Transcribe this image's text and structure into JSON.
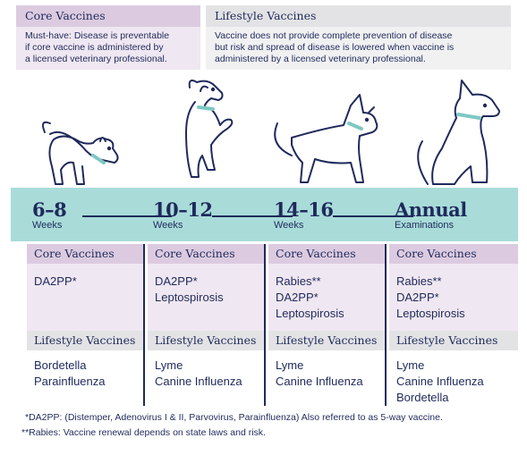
{
  "legend": {
    "core": {
      "title": "Core Vaccines",
      "lines": [
        "Must-have: Disease is preventable",
        "if core vaccine is administered by",
        "a licensed veterinary professional."
      ]
    },
    "lifestyle": {
      "title": "Lifestyle Vaccines",
      "lines": [
        "Vaccine does not provide complete prevention of disease",
        "but risk and spread of disease is lowered when vaccine is",
        "administered by a licensed veterinary professional."
      ]
    }
  },
  "colors": {
    "navy": "#1f2a5c",
    "teal": "#a9dcd9",
    "core_header": "#dccbe0",
    "core_body": "#efe7f1",
    "lifestyle_header": "#e3e3e5"
  },
  "stages": [
    {
      "age": "6–8",
      "unit": "Weeks",
      "core_label": "Core Vaccines",
      "core": [
        "DA2PP*"
      ],
      "lifestyle_label": "Lifestyle Vaccines",
      "lifestyle": [
        "Bordetella",
        "Parainfluenza"
      ]
    },
    {
      "age": "10–12",
      "unit": "Weeks",
      "core_label": "Core Vaccines",
      "core": [
        "DA2PP*",
        "Leptospirosis"
      ],
      "lifestyle_label": "Lifestyle Vaccines",
      "lifestyle": [
        "Lyme",
        "Canine Influenza"
      ]
    },
    {
      "age": "14–16",
      "unit": "Weeks",
      "core_label": "Core Vaccines",
      "core": [
        "Rabies**",
        "DA2PP*",
        "Leptospirosis"
      ],
      "lifestyle_label": "Lifestyle Vaccines",
      "lifestyle": [
        "Lyme",
        "Canine Influenza"
      ]
    },
    {
      "age": "Annual",
      "unit": "Examinations",
      "core_label": "Core Vaccines",
      "core": [
        "Rabies**",
        "DA2PP*",
        "Leptospirosis"
      ],
      "lifestyle_label": "Lifestyle Vaccines",
      "lifestyle": [
        "Lyme",
        "Canine Influenza",
        "Bordetella"
      ]
    }
  ],
  "footnotes": [
    "*DA2PP: (Distemper, Adenovirus I & II, Parvovirus, Parainfluenza) Also referred to as 5-way vaccine.",
    "**Rabies: Vaccine renewal depends on state laws and risk."
  ],
  "icons": [
    "puppy-play-bow-icon",
    "puppy-jumping-icon",
    "dog-walking-icon",
    "dog-sitting-icon"
  ]
}
